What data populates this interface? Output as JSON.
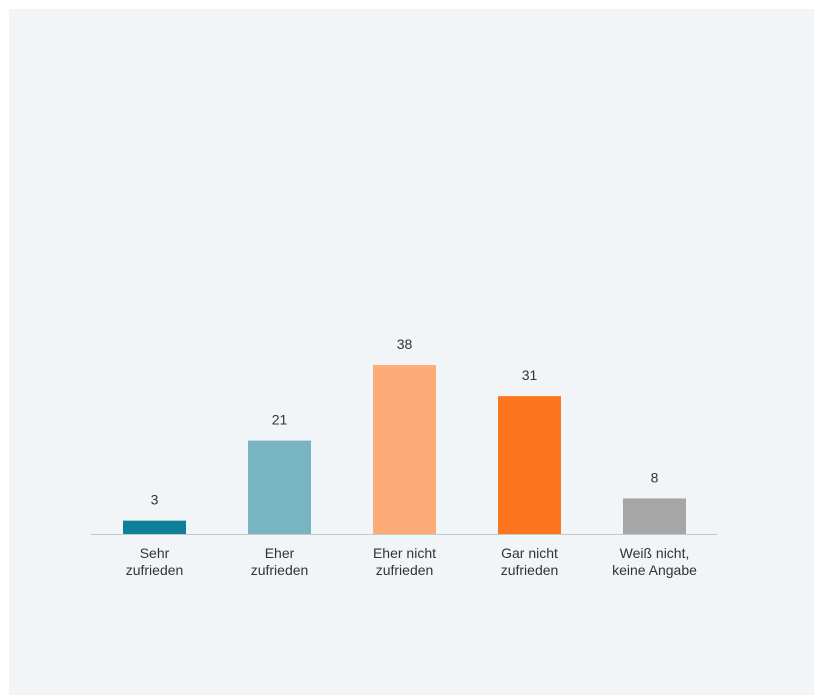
{
  "chart_data": {
    "type": "bar",
    "categories": [
      [
        "Sehr",
        "zufrieden"
      ],
      [
        "Eher",
        "zufrieden"
      ],
      [
        "Eher nicht",
        "zufrieden"
      ],
      [
        "Gar nicht",
        "zufrieden"
      ],
      [
        "Weiß nicht,",
        "keine Angabe"
      ]
    ],
    "values": [
      3,
      21,
      38,
      31,
      8
    ],
    "colors": [
      "#0e7f99",
      "#79b4c2",
      "#fdab77",
      "#fd751e",
      "#a7a6a6"
    ],
    "ylim": [
      0,
      38
    ],
    "grid": false,
    "legend": "none"
  }
}
